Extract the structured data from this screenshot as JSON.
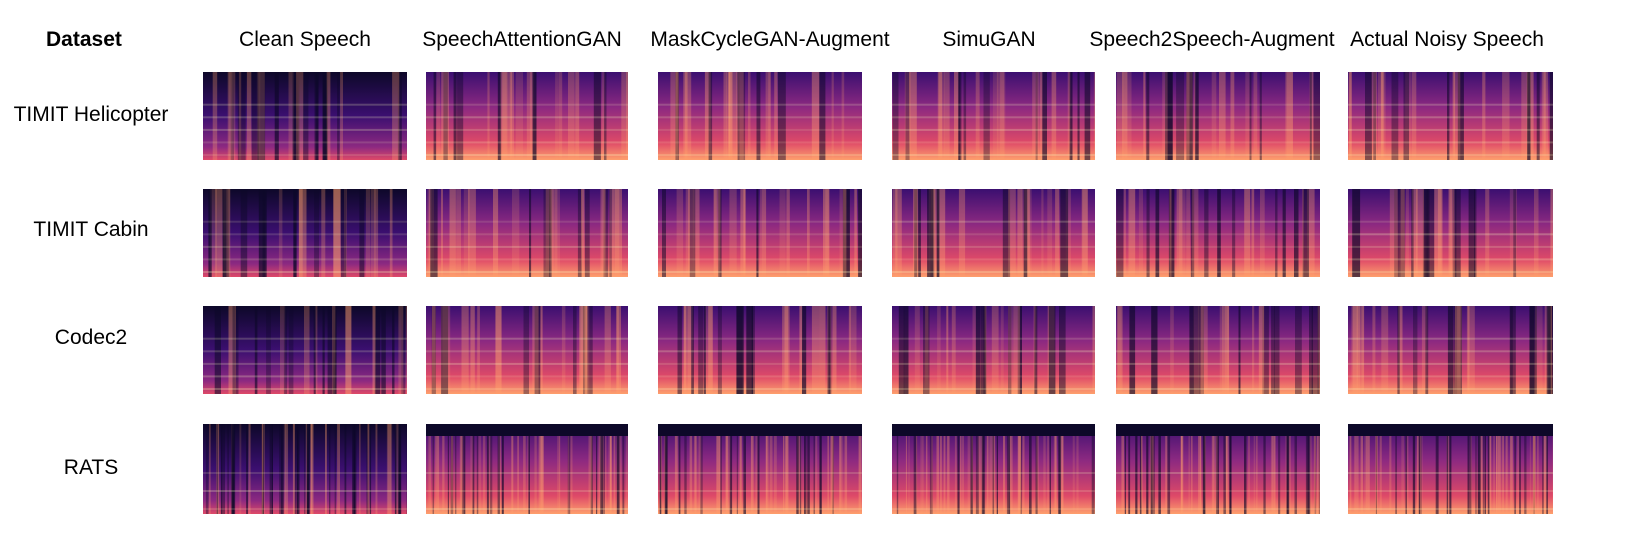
{
  "header": {
    "dataset_label": "Dataset",
    "columns": [
      "Clean Speech",
      "SpeechAttentionGAN",
      "MaskCycleGAN-Augment",
      "SimuGAN",
      "Speech2Speech-Augment",
      "Actual Noisy Speech"
    ]
  },
  "rows": [
    "TIMIT Helicopter",
    "TIMIT Cabin",
    "Codec2",
    "RATS"
  ],
  "colormap": [
    "#0d0829",
    "#3b0f70",
    "#8c2981",
    "#de4968",
    "#fe9f6d",
    "#fcfdbf"
  ]
}
